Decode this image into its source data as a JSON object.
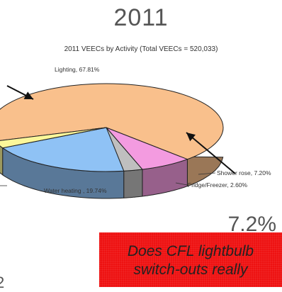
{
  "heading": "2011",
  "overlay": {
    "big_percent": "7.2%",
    "left_fragment": "2",
    "callout_line1": "Does CFL lightbulb",
    "callout_line2": "switch-outs really",
    "callout_color": "#ee1111"
  },
  "chart_data": {
    "type": "pie",
    "title": "2011 VEECs by Activity (Total VEECs = 520,033)",
    "slices": [
      {
        "label": "Lighting, 67.81%",
        "value": 67.81,
        "color": "#f9c08c"
      },
      {
        "label": "Shower rose, 7.20%",
        "value": 7.2,
        "color": "#f39be0"
      },
      {
        "label": "Fridge/Freezer, 2.60%",
        "value": 2.6,
        "color": "#bfbfbf"
      },
      {
        "label": "Water heating , 19.74%",
        "value": 19.74,
        "color": "#8fc2f5"
      },
      {
        "label": "",
        "value": 2.65,
        "color": "#fbf79a"
      }
    ]
  }
}
